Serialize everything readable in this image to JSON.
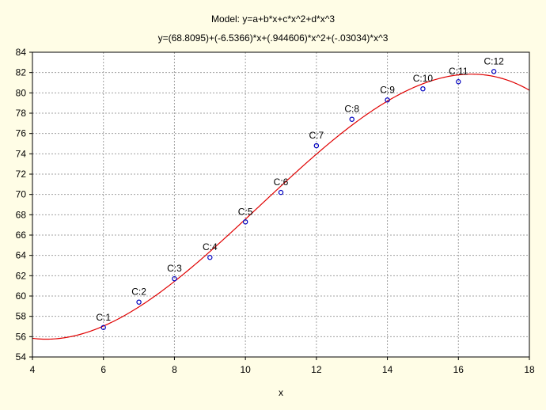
{
  "chart_data": {
    "type": "scatter",
    "title": "Model: y=a+b*x+c*x^2+d*x^3",
    "subtitle": "y=(68.8095)+(-6.5366)*x+(.944606)*x^2+(-.03034)*x^3",
    "xlabel": "x",
    "ylabel": "",
    "xlim": [
      4,
      18
    ],
    "ylim": [
      54,
      84
    ],
    "xticks": [
      4,
      6,
      8,
      10,
      12,
      14,
      16,
      18
    ],
    "yticks": [
      54,
      56,
      58,
      60,
      62,
      64,
      66,
      68,
      70,
      72,
      74,
      76,
      78,
      80,
      82,
      84
    ],
    "grid": true,
    "points": [
      {
        "label": "C:1",
        "x": 6,
        "y": 56.9
      },
      {
        "label": "C:2",
        "x": 7,
        "y": 59.4
      },
      {
        "label": "C:3",
        "x": 8,
        "y": 61.7
      },
      {
        "label": "C:4",
        "x": 9,
        "y": 63.8
      },
      {
        "label": "C:5",
        "x": 10,
        "y": 67.3
      },
      {
        "label": "C:6",
        "x": 11,
        "y": 70.2
      },
      {
        "label": "C:7",
        "x": 12,
        "y": 74.8
      },
      {
        "label": "C:8",
        "x": 13,
        "y": 77.4
      },
      {
        "label": "C:9",
        "x": 14,
        "y": 79.3
      },
      {
        "label": "C:10",
        "x": 15,
        "y": 80.4
      },
      {
        "label": "C:11",
        "x": 16,
        "y": 81.1
      },
      {
        "label": "C:12",
        "x": 17,
        "y": 82.1
      }
    ],
    "fit": {
      "coefficients": {
        "a": 68.8095,
        "b": -6.5366,
        "c": 0.944606,
        "d": -0.03034
      }
    },
    "colors": {
      "background": "#fffde6",
      "plot_background": "#ffffff",
      "points": "#0000c0",
      "fit_line": "#e00000",
      "grid": "#a0a0a0"
    }
  }
}
